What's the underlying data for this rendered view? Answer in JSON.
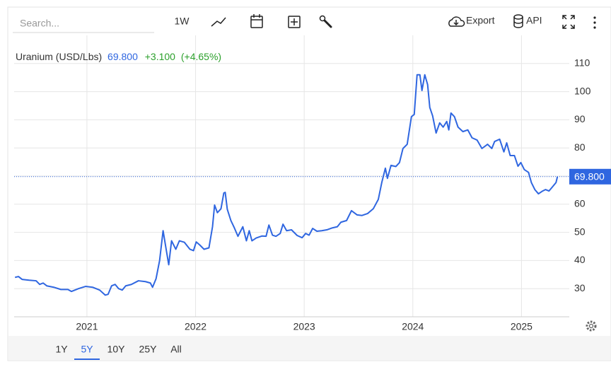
{
  "toolbar": {
    "search_placeholder": "Search...",
    "interval": "1W",
    "export": "Export",
    "api": "API"
  },
  "ranges": {
    "items": [
      "1Y",
      "5Y",
      "10Y",
      "25Y",
      "All"
    ],
    "active": 1
  },
  "chart_data": {
    "type": "line",
    "last": {
      "value": 69.8,
      "label": "69.800"
    },
    "change": {
      "value": 3.1,
      "label": "+3.100"
    },
    "change_pct": "(+4.65%)",
    "xlim": [
      2020.33,
      2025.44
    ],
    "xticks": [
      2021,
      2022,
      2023,
      2024,
      2025
    ],
    "ylim": [
      20,
      120
    ],
    "yticks": [
      30,
      40,
      50,
      60,
      70,
      80,
      90,
      100,
      110
    ],
    "grid": true,
    "series": [
      {
        "name": "Uranium (USD/Lbs)",
        "color": "#2f66e0",
        "x": [
          2020.338,
          2020.37,
          2020.403,
          2020.468,
          2020.532,
          2020.565,
          2020.597,
          2020.63,
          2020.695,
          2020.76,
          2020.825,
          2020.857,
          2020.922,
          2020.987,
          2021.052,
          2021.117,
          2021.169,
          2021.195,
          2021.227,
          2021.26,
          2021.292,
          2021.325,
          2021.357,
          2021.409,
          2021.474,
          2021.539,
          2021.584,
          2021.604,
          2021.636,
          2021.669,
          2021.701,
          2021.727,
          2021.753,
          2021.779,
          2021.818,
          2021.851,
          2021.896,
          2021.948,
          2021.981,
          2022.006,
          2022.039,
          2022.078,
          2022.123,
          2022.156,
          2022.175,
          2022.201,
          2022.234,
          2022.26,
          2022.273,
          2022.292,
          2022.325,
          2022.357,
          2022.39,
          2022.435,
          2022.468,
          2022.494,
          2022.519,
          2022.558,
          2022.61,
          2022.649,
          2022.675,
          2022.708,
          2022.74,
          2022.779,
          2022.805,
          2022.838,
          2022.883,
          2022.935,
          2022.981,
          2023.013,
          2023.045,
          2023.078,
          2023.117,
          2023.162,
          2023.208,
          2023.26,
          2023.305,
          2023.338,
          2023.39,
          2023.435,
          2023.487,
          2023.532,
          2023.584,
          2023.636,
          2023.682,
          2023.714,
          2023.747,
          2023.766,
          2023.799,
          2023.844,
          2023.877,
          2023.909,
          2023.948,
          2023.987,
          2024.013,
          2024.039,
          2024.065,
          2024.084,
          2024.11,
          2024.136,
          2024.156,
          2024.182,
          2024.214,
          2024.247,
          2024.279,
          2024.312,
          2024.331,
          2024.351,
          2024.383,
          2024.416,
          2024.461,
          2024.506,
          2024.545,
          2024.591,
          2024.636,
          2024.688,
          2024.727,
          2024.753,
          2024.799,
          2024.838,
          2024.864,
          2024.896,
          2024.935,
          2024.968,
          2024.994,
          2025.026,
          2025.065,
          2025.091,
          2025.123,
          2025.156,
          2025.195,
          2025.221,
          2025.253,
          2025.286,
          2025.318,
          2025.331
        ],
        "values": [
          34.0,
          34.3,
          33.3,
          33.0,
          32.8,
          31.5,
          32,
          31,
          30.5,
          29.7,
          29.7,
          29,
          30,
          30.8,
          30.5,
          29.5,
          27.7,
          28,
          31,
          31.5,
          30,
          29.5,
          31,
          31.5,
          32.8,
          32.5,
          32,
          30.5,
          33.5,
          40,
          50.6,
          44.5,
          38.5,
          47,
          44,
          47,
          46.5,
          44,
          43.5,
          46.6,
          45.5,
          44,
          44.5,
          52,
          59.7,
          57,
          58.4,
          64,
          64.2,
          58.2,
          54.2,
          51.6,
          48.6,
          52,
          47,
          50.6,
          47,
          48,
          48.7,
          48.6,
          52.6,
          49,
          48.6,
          49.6,
          52.9,
          50.6,
          50.9,
          48.9,
          48.1,
          49.6,
          49,
          51.4,
          50.4,
          50.6,
          50.9,
          51.6,
          52,
          53.6,
          54.2,
          57.7,
          56.2,
          56,
          56.7,
          58.4,
          61.7,
          67.7,
          72.8,
          69.2,
          73.8,
          73.4,
          74.8,
          79.8,
          81.3,
          91.1,
          91.9,
          106,
          106,
          100.4,
          106,
          102.5,
          94.4,
          91.4,
          85.3,
          88.9,
          87.4,
          89.4,
          86.4,
          92.4,
          91.1,
          87.4,
          85.8,
          86.4,
          83.6,
          82.8,
          79.8,
          81.3,
          79.8,
          82.3,
          83.1,
          78.6,
          81.8,
          77.3,
          77.3,
          73.5,
          74.8,
          72.3,
          71.3,
          67.7,
          65.2,
          63.7,
          64.7,
          65.2,
          64.7,
          66.2,
          67.7,
          69.8
        ]
      }
    ]
  }
}
